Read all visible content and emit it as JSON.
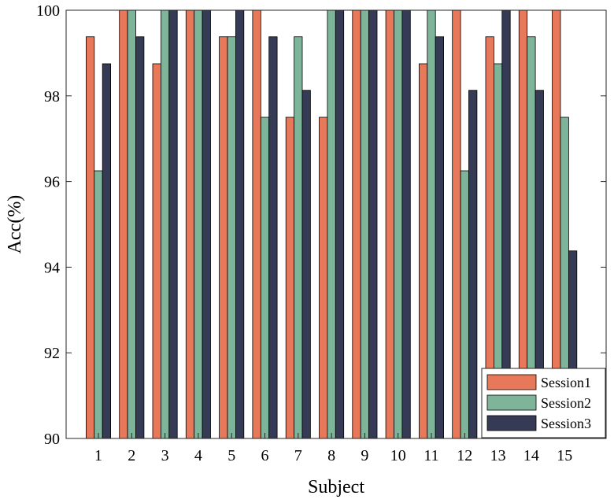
{
  "chart_data": {
    "type": "bar",
    "xlabel": "Subject",
    "ylabel": "Acc(%)",
    "ylim": [
      90,
      100
    ],
    "yticks": [
      "90",
      "92",
      "94",
      "96",
      "98",
      "100"
    ],
    "categories": [
      "1",
      "2",
      "3",
      "4",
      "5",
      "6",
      "7",
      "8",
      "9",
      "10",
      "11",
      "12",
      "13",
      "14",
      "15"
    ],
    "series": [
      {
        "name": "Session1",
        "color": "#E8785A",
        "values": [
          99.38,
          100,
          98.75,
          100,
          99.38,
          100,
          97.5,
          97.5,
          100,
          100,
          98.75,
          100,
          99.38,
          100,
          100
        ]
      },
      {
        "name": "Session2",
        "color": "#7EB59A",
        "values": [
          96.25,
          100,
          100,
          100,
          99.38,
          97.5,
          99.38,
          100,
          100,
          100,
          100,
          96.25,
          98.75,
          99.38,
          97.5
        ]
      },
      {
        "name": "Session3",
        "color": "#353A55",
        "values": [
          98.75,
          99.38,
          100,
          100,
          100,
          99.38,
          98.13,
          100,
          100,
          100,
          99.38,
          98.13,
          100,
          98.13,
          94.38
        ]
      }
    ],
    "legend_position": "bottom-right",
    "grid": false
  }
}
